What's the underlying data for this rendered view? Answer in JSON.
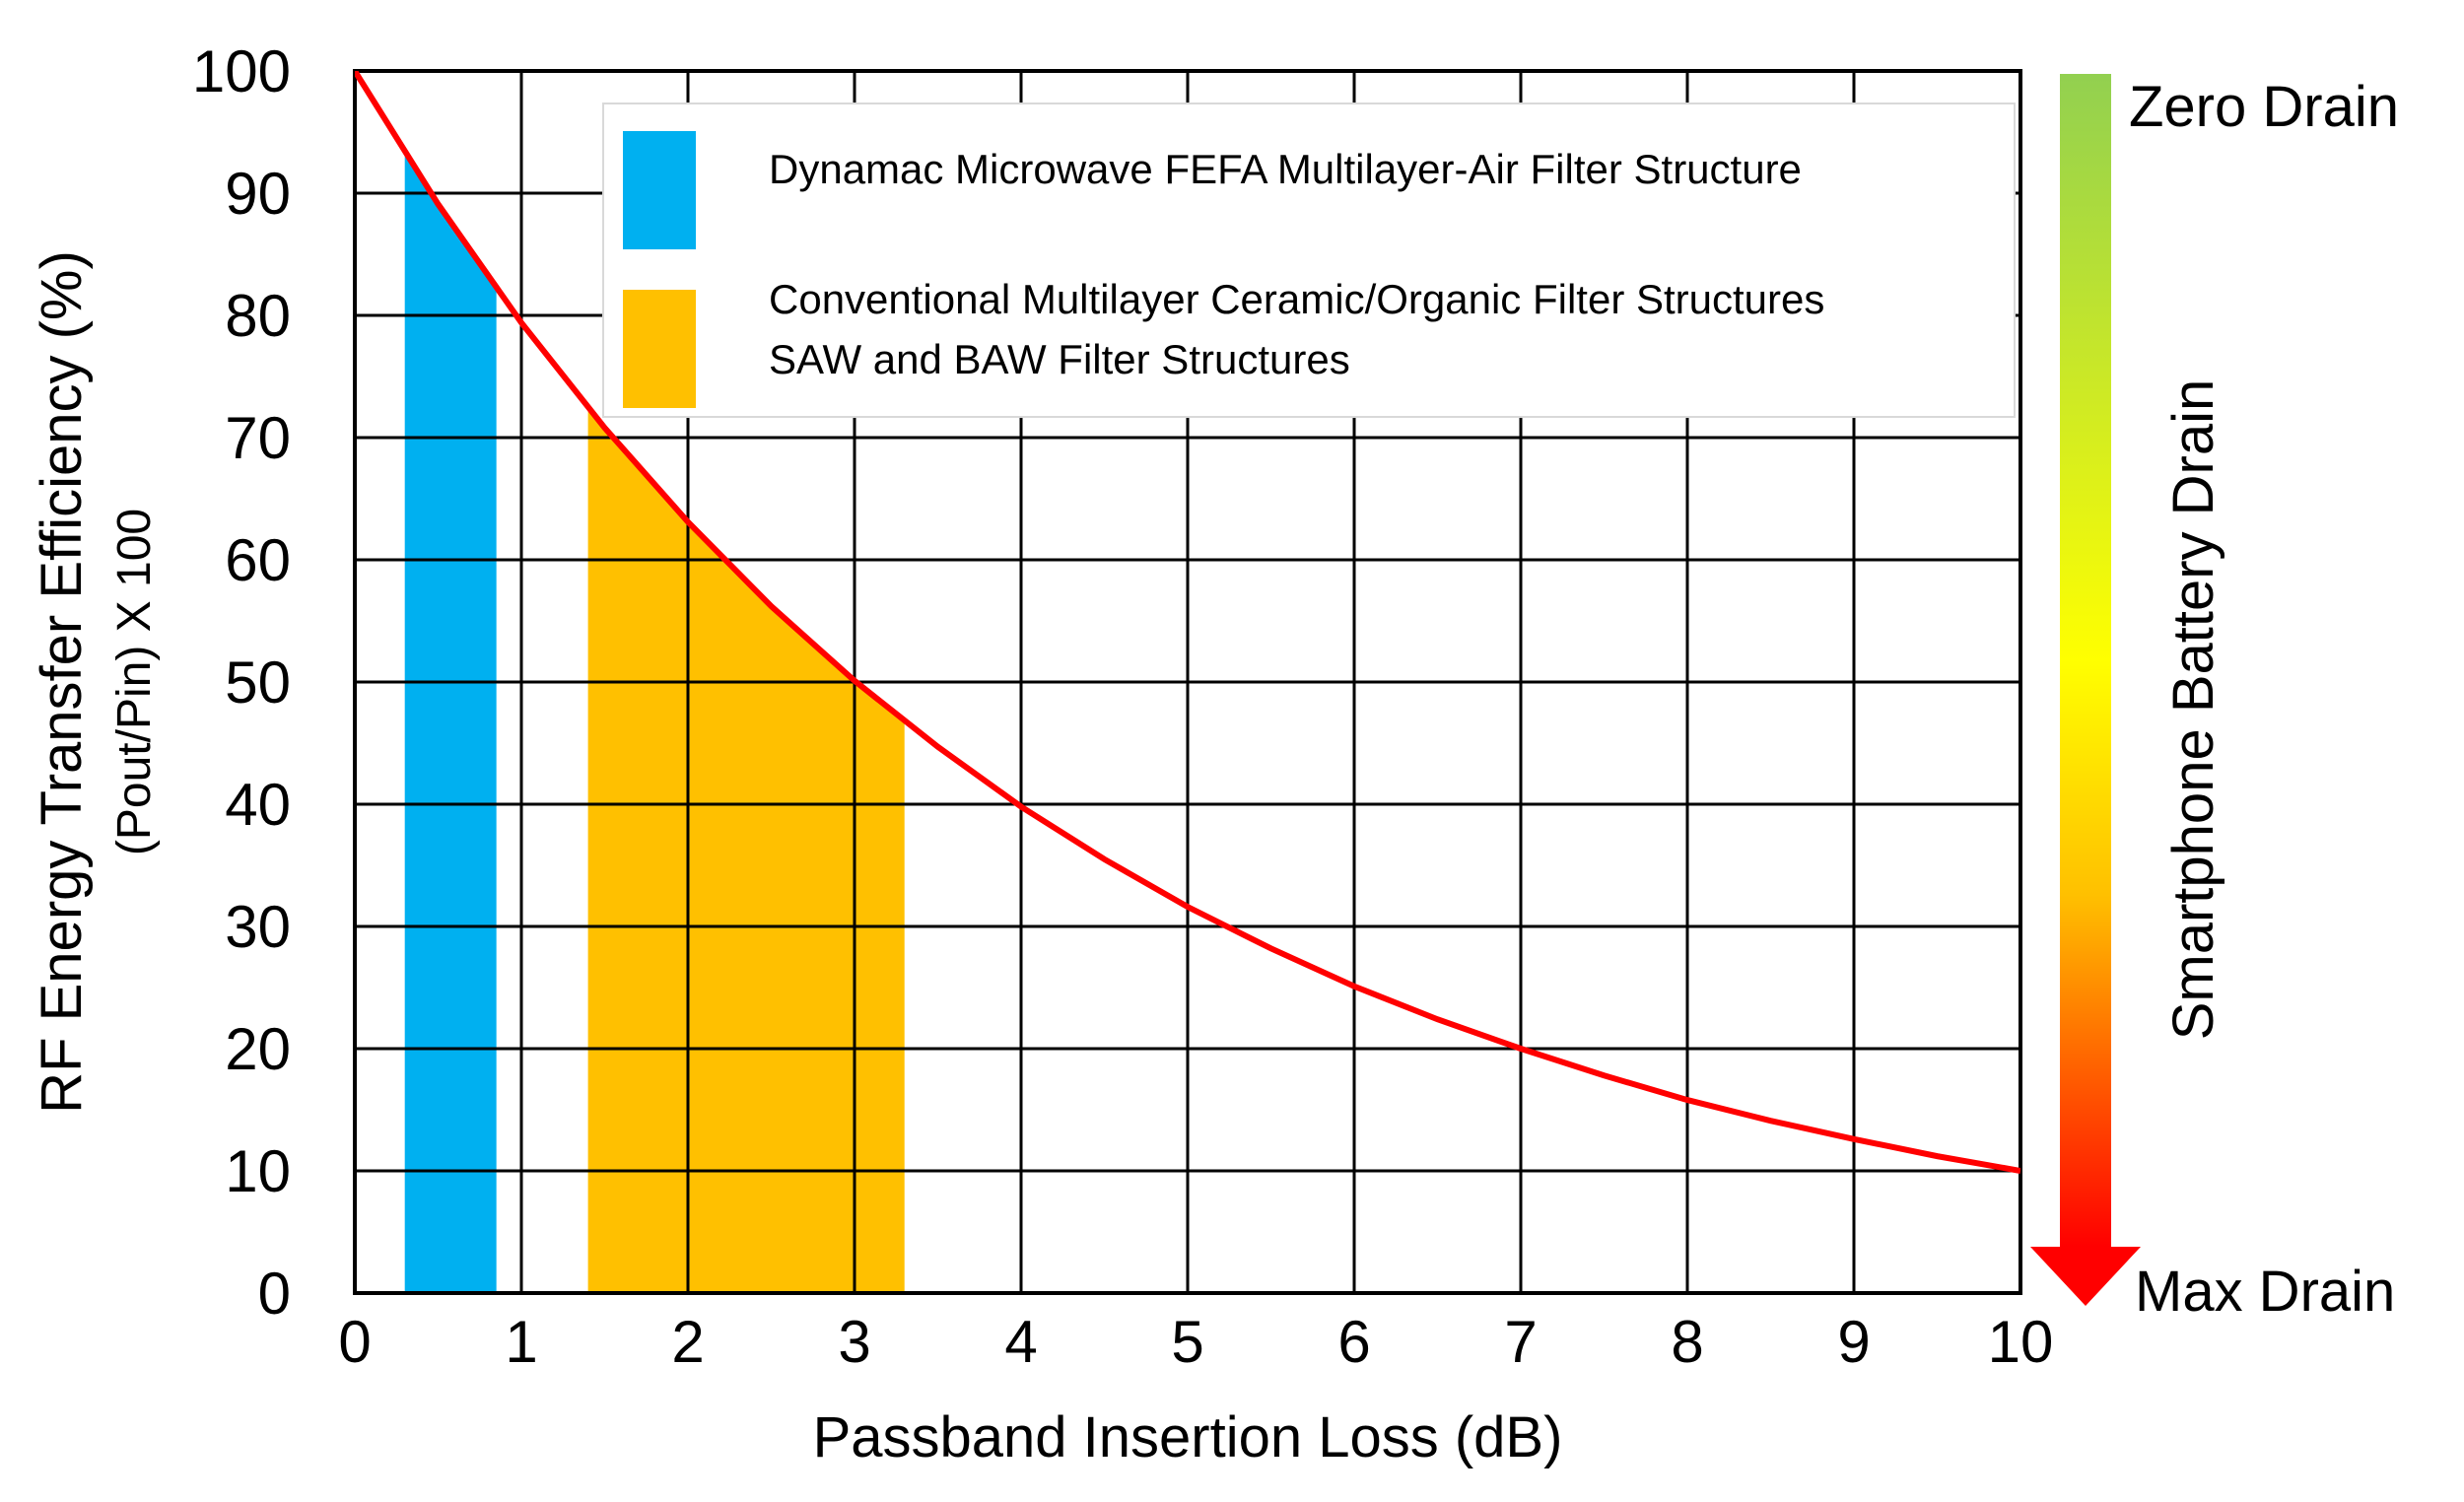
{
  "chart_data": {
    "type": "area",
    "xlabel": "Passband Insertion Loss (dB)",
    "ylabel": "RF Energy Transfer Efficiency (%)",
    "ylabel_sub": "(Pout/Pin) X 100",
    "xlim": [
      0,
      10
    ],
    "ylim": [
      0,
      100
    ],
    "x_ticks": [
      "0",
      "1",
      "2",
      "3",
      "4",
      "5",
      "6",
      "7",
      "8",
      "9",
      "10"
    ],
    "y_ticks": [
      "0",
      "10",
      "20",
      "30",
      "40",
      "50",
      "60",
      "70",
      "80",
      "90",
      "100"
    ],
    "grid": true,
    "curve": {
      "color": "#ff0000",
      "formula": "100 * 10^(-x/10)",
      "x": [
        0,
        0.5,
        1,
        1.5,
        2,
        2.5,
        3,
        3.5,
        4,
        4.5,
        5,
        5.5,
        6,
        6.5,
        7,
        7.5,
        8,
        8.5,
        9,
        9.5,
        10
      ],
      "y": [
        100,
        89.1,
        79.4,
        70.8,
        63.1,
        56.2,
        50.1,
        44.7,
        39.8,
        35.5,
        31.6,
        28.2,
        25.1,
        22.4,
        20.0,
        17.8,
        15.8,
        14.1,
        12.6,
        11.2,
        10.0
      ]
    },
    "regions": [
      {
        "name": "Dynamac Microwave FEFA Multilayer-Air Filter Structure",
        "color": "#00b0f0",
        "x_range": [
          0.3,
          0.85
        ]
      },
      {
        "name": "Conventional Multilayer Ceramic/Organic Filter Structures",
        "name_line2": "SAW and BAW Filter Structures",
        "color": "#ffc000",
        "x_range": [
          1.4,
          3.3
        ]
      }
    ],
    "legend_position": "top-right",
    "side_scale": {
      "label": "Smartphone Battery Drain",
      "top_label": "Zero Drain",
      "bottom_label": "Max Drain",
      "colors": [
        "#92d050",
        "#ffff00",
        "#ffc000",
        "#ff0000"
      ]
    }
  }
}
